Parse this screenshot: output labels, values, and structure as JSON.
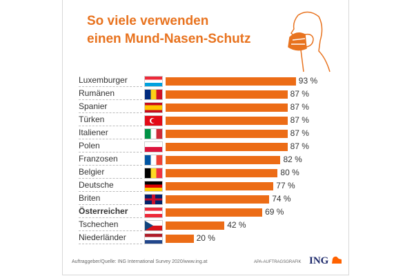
{
  "title": {
    "line1": "So viele verwenden",
    "line2": "einen Mund-Nasen-Schutz"
  },
  "colors": {
    "bar": "#ec6c16",
    "title": "#e8731f"
  },
  "chart_data": {
    "type": "bar",
    "orientation": "horizontal",
    "title": "So viele verwenden einen Mund-Nasen-Schutz",
    "unit": "%",
    "categories": [
      "Luxemburger",
      "Rumänen",
      "Spanier",
      "Türken",
      "Italiener",
      "Polen",
      "Franzosen",
      "Belgier",
      "Deutsche",
      "Briten",
      "Österreicher",
      "Tschechen",
      "Niederländer"
    ],
    "values": [
      93,
      87,
      87,
      87,
      87,
      87,
      82,
      80,
      77,
      74,
      69,
      42,
      20
    ],
    "value_labels": [
      "93 %",
      "87 %",
      "87 %",
      "87 %",
      "87 %",
      "87 %",
      "82 %",
      "80 %",
      "77 %",
      "74 %",
      "69 %",
      "42 %",
      "20 %"
    ],
    "flags": [
      "luxembourg",
      "romania",
      "spain",
      "turkey",
      "italy",
      "poland",
      "france",
      "belgium",
      "germany",
      "uk",
      "austria",
      "czechia",
      "netherlands"
    ],
    "highlight": "Österreicher",
    "xlim": [
      0,
      100
    ]
  },
  "footer": {
    "source": "Auftraggeber/Quelle: ING International Survey 2020/www.ing.at",
    "credit": "APA-AUFTRAGSGRAFIK",
    "logo": "ING"
  }
}
